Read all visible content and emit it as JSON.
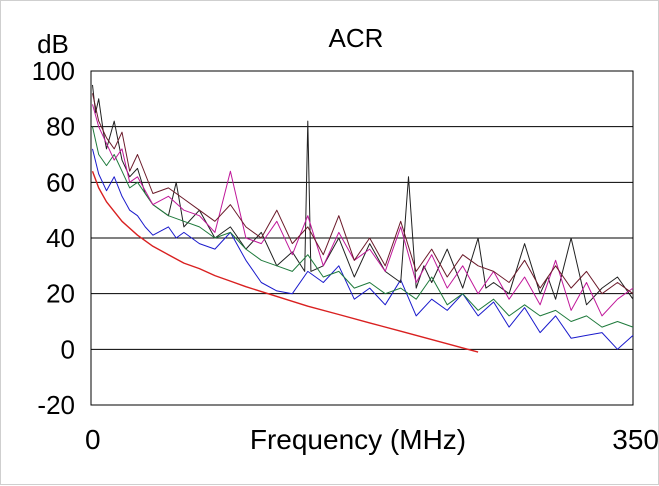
{
  "chart_data": {
    "type": "line",
    "title": "ACR",
    "ylabel": "dB",
    "xlabel": "Frequency (MHz)",
    "xlim": [
      0,
      350
    ],
    "ylim": [
      -20,
      100
    ],
    "x_tick_labels": [
      "0",
      "350"
    ],
    "y_ticks": [
      100,
      80,
      60,
      40,
      20,
      0,
      -20
    ],
    "y_tick_labels": [
      "100",
      "80",
      "60",
      "40",
      "20",
      "0",
      "-20"
    ],
    "grid": "horizontal",
    "legend": "none",
    "series": [
      {
        "color": "#d92020",
        "x": [
          1,
          5,
          10,
          20,
          30,
          40,
          50,
          60,
          70,
          80,
          90,
          100,
          120,
          140,
          160,
          180,
          200,
          220,
          240,
          250
        ],
        "y": [
          64,
          58,
          53,
          46,
          41,
          37,
          34,
          31,
          29,
          26.5,
          24.5,
          22.5,
          19,
          15.5,
          12.5,
          9.5,
          6.5,
          3.5,
          0.5,
          -1
        ]
      },
      {
        "color": "#1a1acc",
        "x": [
          1,
          5,
          10,
          15,
          20,
          25,
          30,
          35,
          40,
          50,
          55,
          60,
          70,
          80,
          90,
          100,
          110,
          120,
          130,
          140,
          150,
          160,
          170,
          180,
          190,
          200,
          210,
          220,
          230,
          240,
          250,
          260,
          270,
          280,
          290,
          300,
          310,
          320,
          330,
          340,
          350
        ],
        "y": [
          72,
          63,
          57,
          62,
          55,
          50,
          48,
          44,
          41,
          44,
          40,
          42,
          38,
          36,
          42,
          32,
          24,
          21,
          20,
          28,
          24,
          30,
          18,
          22,
          16,
          25,
          12,
          18,
          14,
          20,
          12,
          17,
          8,
          15,
          6,
          12,
          4,
          5,
          6,
          0,
          5
        ]
      },
      {
        "color": "#202020",
        "x": [
          1,
          3,
          5,
          8,
          10,
          15,
          20,
          25,
          30,
          35,
          40,
          50,
          55,
          60,
          70,
          80,
          90,
          100,
          110,
          120,
          130,
          138,
          140,
          142,
          150,
          160,
          170,
          180,
          190,
          200,
          205,
          210,
          215,
          220,
          230,
          240,
          250,
          255,
          260,
          270,
          280,
          290,
          295,
          300,
          310,
          320,
          330,
          340,
          350
        ],
        "y": [
          95,
          85,
          90,
          78,
          72,
          82,
          68,
          62,
          65,
          56,
          52,
          48,
          60,
          44,
          50,
          40,
          44,
          36,
          42,
          30,
          35,
          28,
          82,
          28,
          30,
          40,
          26,
          38,
          28,
          24,
          62,
          22,
          30,
          24,
          36,
          22,
          40,
          22,
          24,
          20,
          38,
          20,
          26,
          18,
          40,
          16,
          22,
          26,
          18
        ]
      },
      {
        "color": "#1f7a3c",
        "x": [
          1,
          5,
          10,
          15,
          20,
          25,
          30,
          40,
          50,
          60,
          70,
          80,
          90,
          100,
          110,
          120,
          130,
          140,
          150,
          160,
          170,
          180,
          190,
          200,
          210,
          220,
          230,
          240,
          250,
          260,
          270,
          280,
          290,
          300,
          310,
          320,
          330,
          340,
          350
        ],
        "y": [
          80,
          70,
          66,
          70,
          64,
          58,
          60,
          52,
          48,
          46,
          44,
          40,
          42,
          36,
          32,
          30,
          28,
          34,
          26,
          28,
          22,
          24,
          20,
          22,
          18,
          26,
          16,
          20,
          14,
          18,
          12,
          16,
          12,
          14,
          10,
          12,
          8,
          10,
          8
        ]
      },
      {
        "color": "#c0189a",
        "x": [
          1,
          5,
          10,
          15,
          20,
          25,
          30,
          40,
          50,
          60,
          70,
          80,
          90,
          100,
          110,
          120,
          130,
          140,
          150,
          160,
          170,
          180,
          190,
          200,
          210,
          220,
          230,
          240,
          250,
          260,
          270,
          280,
          290,
          300,
          310,
          320,
          330,
          340,
          350
        ],
        "y": [
          88,
          80,
          74,
          68,
          72,
          60,
          62,
          52,
          55,
          50,
          48,
          42,
          64,
          40,
          38,
          46,
          34,
          48,
          30,
          42,
          32,
          36,
          28,
          44,
          24,
          34,
          22,
          30,
          20,
          28,
          18,
          26,
          16,
          32,
          14,
          24,
          12,
          18,
          22
        ]
      },
      {
        "color": "#6b1a2a",
        "x": [
          1,
          5,
          10,
          15,
          20,
          25,
          30,
          40,
          50,
          60,
          70,
          80,
          90,
          100,
          110,
          120,
          130,
          140,
          150,
          160,
          170,
          180,
          190,
          200,
          210,
          220,
          230,
          240,
          250,
          260,
          270,
          280,
          290,
          300,
          310,
          320,
          330,
          340,
          350
        ],
        "y": [
          92,
          82,
          76,
          72,
          78,
          64,
          70,
          56,
          58,
          54,
          50,
          46,
          52,
          44,
          40,
          50,
          38,
          44,
          34,
          48,
          32,
          40,
          30,
          46,
          28,
          36,
          26,
          34,
          30,
          28,
          24,
          32,
          22,
          30,
          22,
          28,
          20,
          24,
          20
        ]
      }
    ]
  }
}
